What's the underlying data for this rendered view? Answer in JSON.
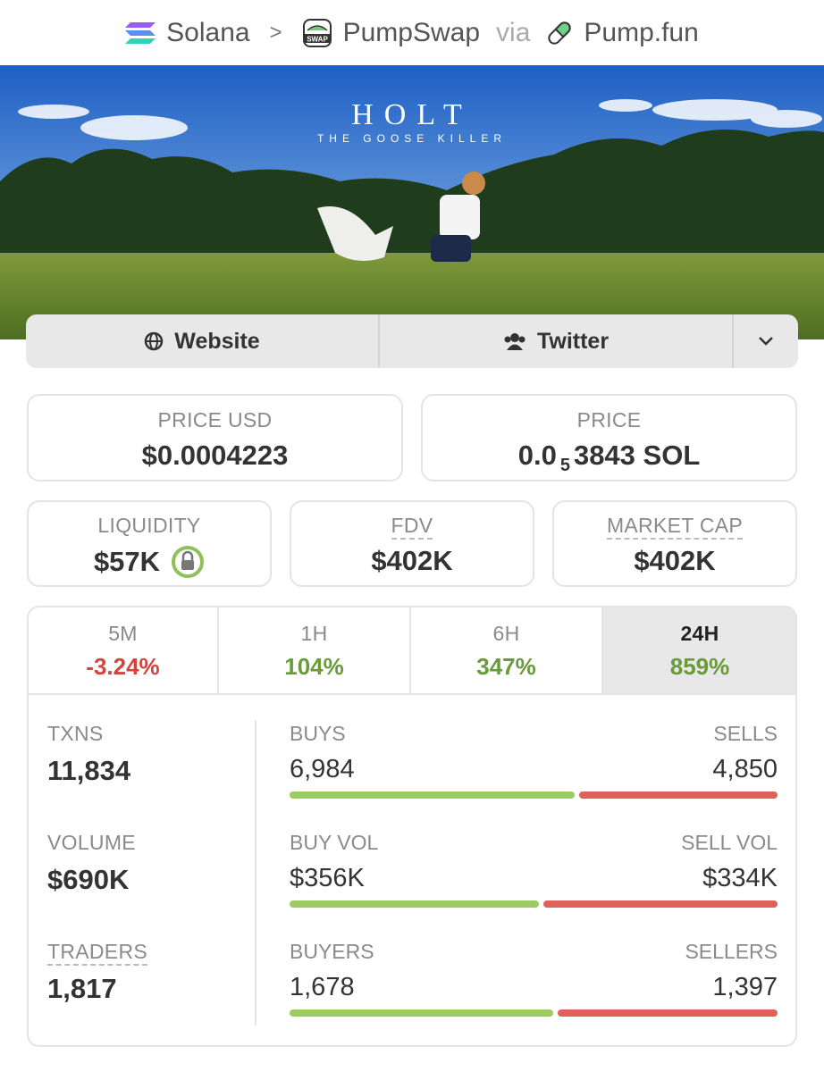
{
  "breadcrumb": {
    "chain": "Solana",
    "separator": ">",
    "dex": "PumpSwap",
    "dex_badge": "SWAP",
    "via": "via",
    "launchpad": "Pump.fun"
  },
  "banner": {
    "title": "HOLT",
    "subtitle": "THE GOOSE KILLER"
  },
  "links": {
    "website": "Website",
    "twitter": "Twitter"
  },
  "price_usd": {
    "label": "PRICE USD",
    "value": "$0.0004223"
  },
  "price": {
    "label": "PRICE",
    "value_start": "0.0",
    "zero_count": "5",
    "value_end": "3843 SOL"
  },
  "metrics": [
    {
      "label": "LIQUIDITY",
      "value": "$57K",
      "locked": true
    },
    {
      "label": "FDV",
      "value": "$402K",
      "locked": false
    },
    {
      "label": "MARKET CAP",
      "value": "$402K",
      "locked": false
    }
  ],
  "timeframes": [
    {
      "label": "5M",
      "change": "-3.24%",
      "active": false
    },
    {
      "label": "1H",
      "change": "104%",
      "active": false
    },
    {
      "label": "6H",
      "change": "347%",
      "active": false
    },
    {
      "label": "24H",
      "change": "859%",
      "active": true
    }
  ],
  "stats": [
    {
      "label": "TXNS",
      "value": "11,834",
      "buy_label": "BUYS",
      "buy_value": "6,984",
      "sell_label": "SELLS",
      "sell_value": "4,850"
    },
    {
      "label": "VOLUME",
      "value": "$690K",
      "buy_label": "BUY VOL",
      "buy_value": "$356K",
      "sell_label": "SELL VOL",
      "sell_value": "$334K"
    },
    {
      "label": "TRADERS",
      "value": "1,817",
      "buy_label": "BUYERS",
      "buy_value": "1,678",
      "sell_label": "SELLERS",
      "sell_value": "1,397"
    }
  ]
}
